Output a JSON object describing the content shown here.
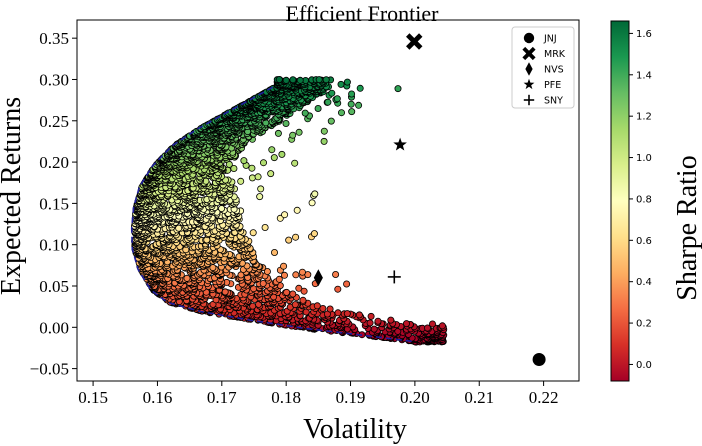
{
  "chart_data": {
    "type": "scatter",
    "title": "Efficient Frontier",
    "xlabel": "Volatility",
    "ylabel": "Expected Returns",
    "colorbar_label": "Sharpe  Ratio",
    "xlim": [
      0.1475,
      0.2255
    ],
    "ylim": [
      -0.065,
      0.372
    ],
    "xticks": [
      "0.15",
      "0.16",
      "0.17",
      "0.18",
      "0.19",
      "0.20",
      "0.21",
      "0.22"
    ],
    "yticks": [
      "−0.05",
      "0.00",
      "0.05",
      "0.10",
      "0.15",
      "0.20",
      "0.25",
      "0.30",
      "0.35"
    ],
    "colorbar_range": [
      -0.08,
      1.66
    ],
    "colorbar_ticks": [
      "0.0",
      "0.2",
      "0.4",
      "0.6",
      "0.8",
      "1.0",
      "1.2",
      "1.4",
      "1.6"
    ],
    "colormap": "RdYlGn",
    "colormap_colors": [
      "#a50026",
      "#d73027",
      "#f46d43",
      "#fdae61",
      "#fee08b",
      "#ffffbf",
      "#d9ef8b",
      "#a6d96a",
      "#66bd63",
      "#1a9850",
      "#006837"
    ],
    "frontier_color": "#1f1f9f",
    "frontier_style": "dashed",
    "frontier": {
      "x": [
        0.1995,
        0.1912,
        0.1826,
        0.1742,
        0.1668,
        0.1616,
        0.159,
        0.157,
        0.1561,
        0.156,
        0.1563,
        0.1572,
        0.1592,
        0.1623,
        0.1662,
        0.1703,
        0.1745,
        0.1782
      ],
      "y": [
        -0.017,
        -0.009,
        -0.001,
        0.009,
        0.019,
        0.03,
        0.045,
        0.07,
        0.095,
        0.12,
        0.145,
        0.17,
        0.195,
        0.22,
        0.24,
        0.258,
        0.276,
        0.292
      ]
    },
    "stocks": [
      {
        "name": "JNJ",
        "marker": "circle",
        "x": 0.2193,
        "y": -0.039
      },
      {
        "name": "MRK",
        "marker": "x",
        "x": 0.1999,
        "y": 0.346
      },
      {
        "name": "NVS",
        "marker": "diamond",
        "x": 0.185,
        "y": 0.06
      },
      {
        "name": "PFE",
        "marker": "star",
        "x": 0.1977,
        "y": 0.221
      },
      {
        "name": "SNY",
        "marker": "plus",
        "x": 0.1968,
        "y": 0.061
      }
    ],
    "legend": [
      "JNJ",
      "MRK",
      "NVS",
      "PFE",
      "SNY"
    ],
    "legend_position": "top-right",
    "grid": false
  }
}
